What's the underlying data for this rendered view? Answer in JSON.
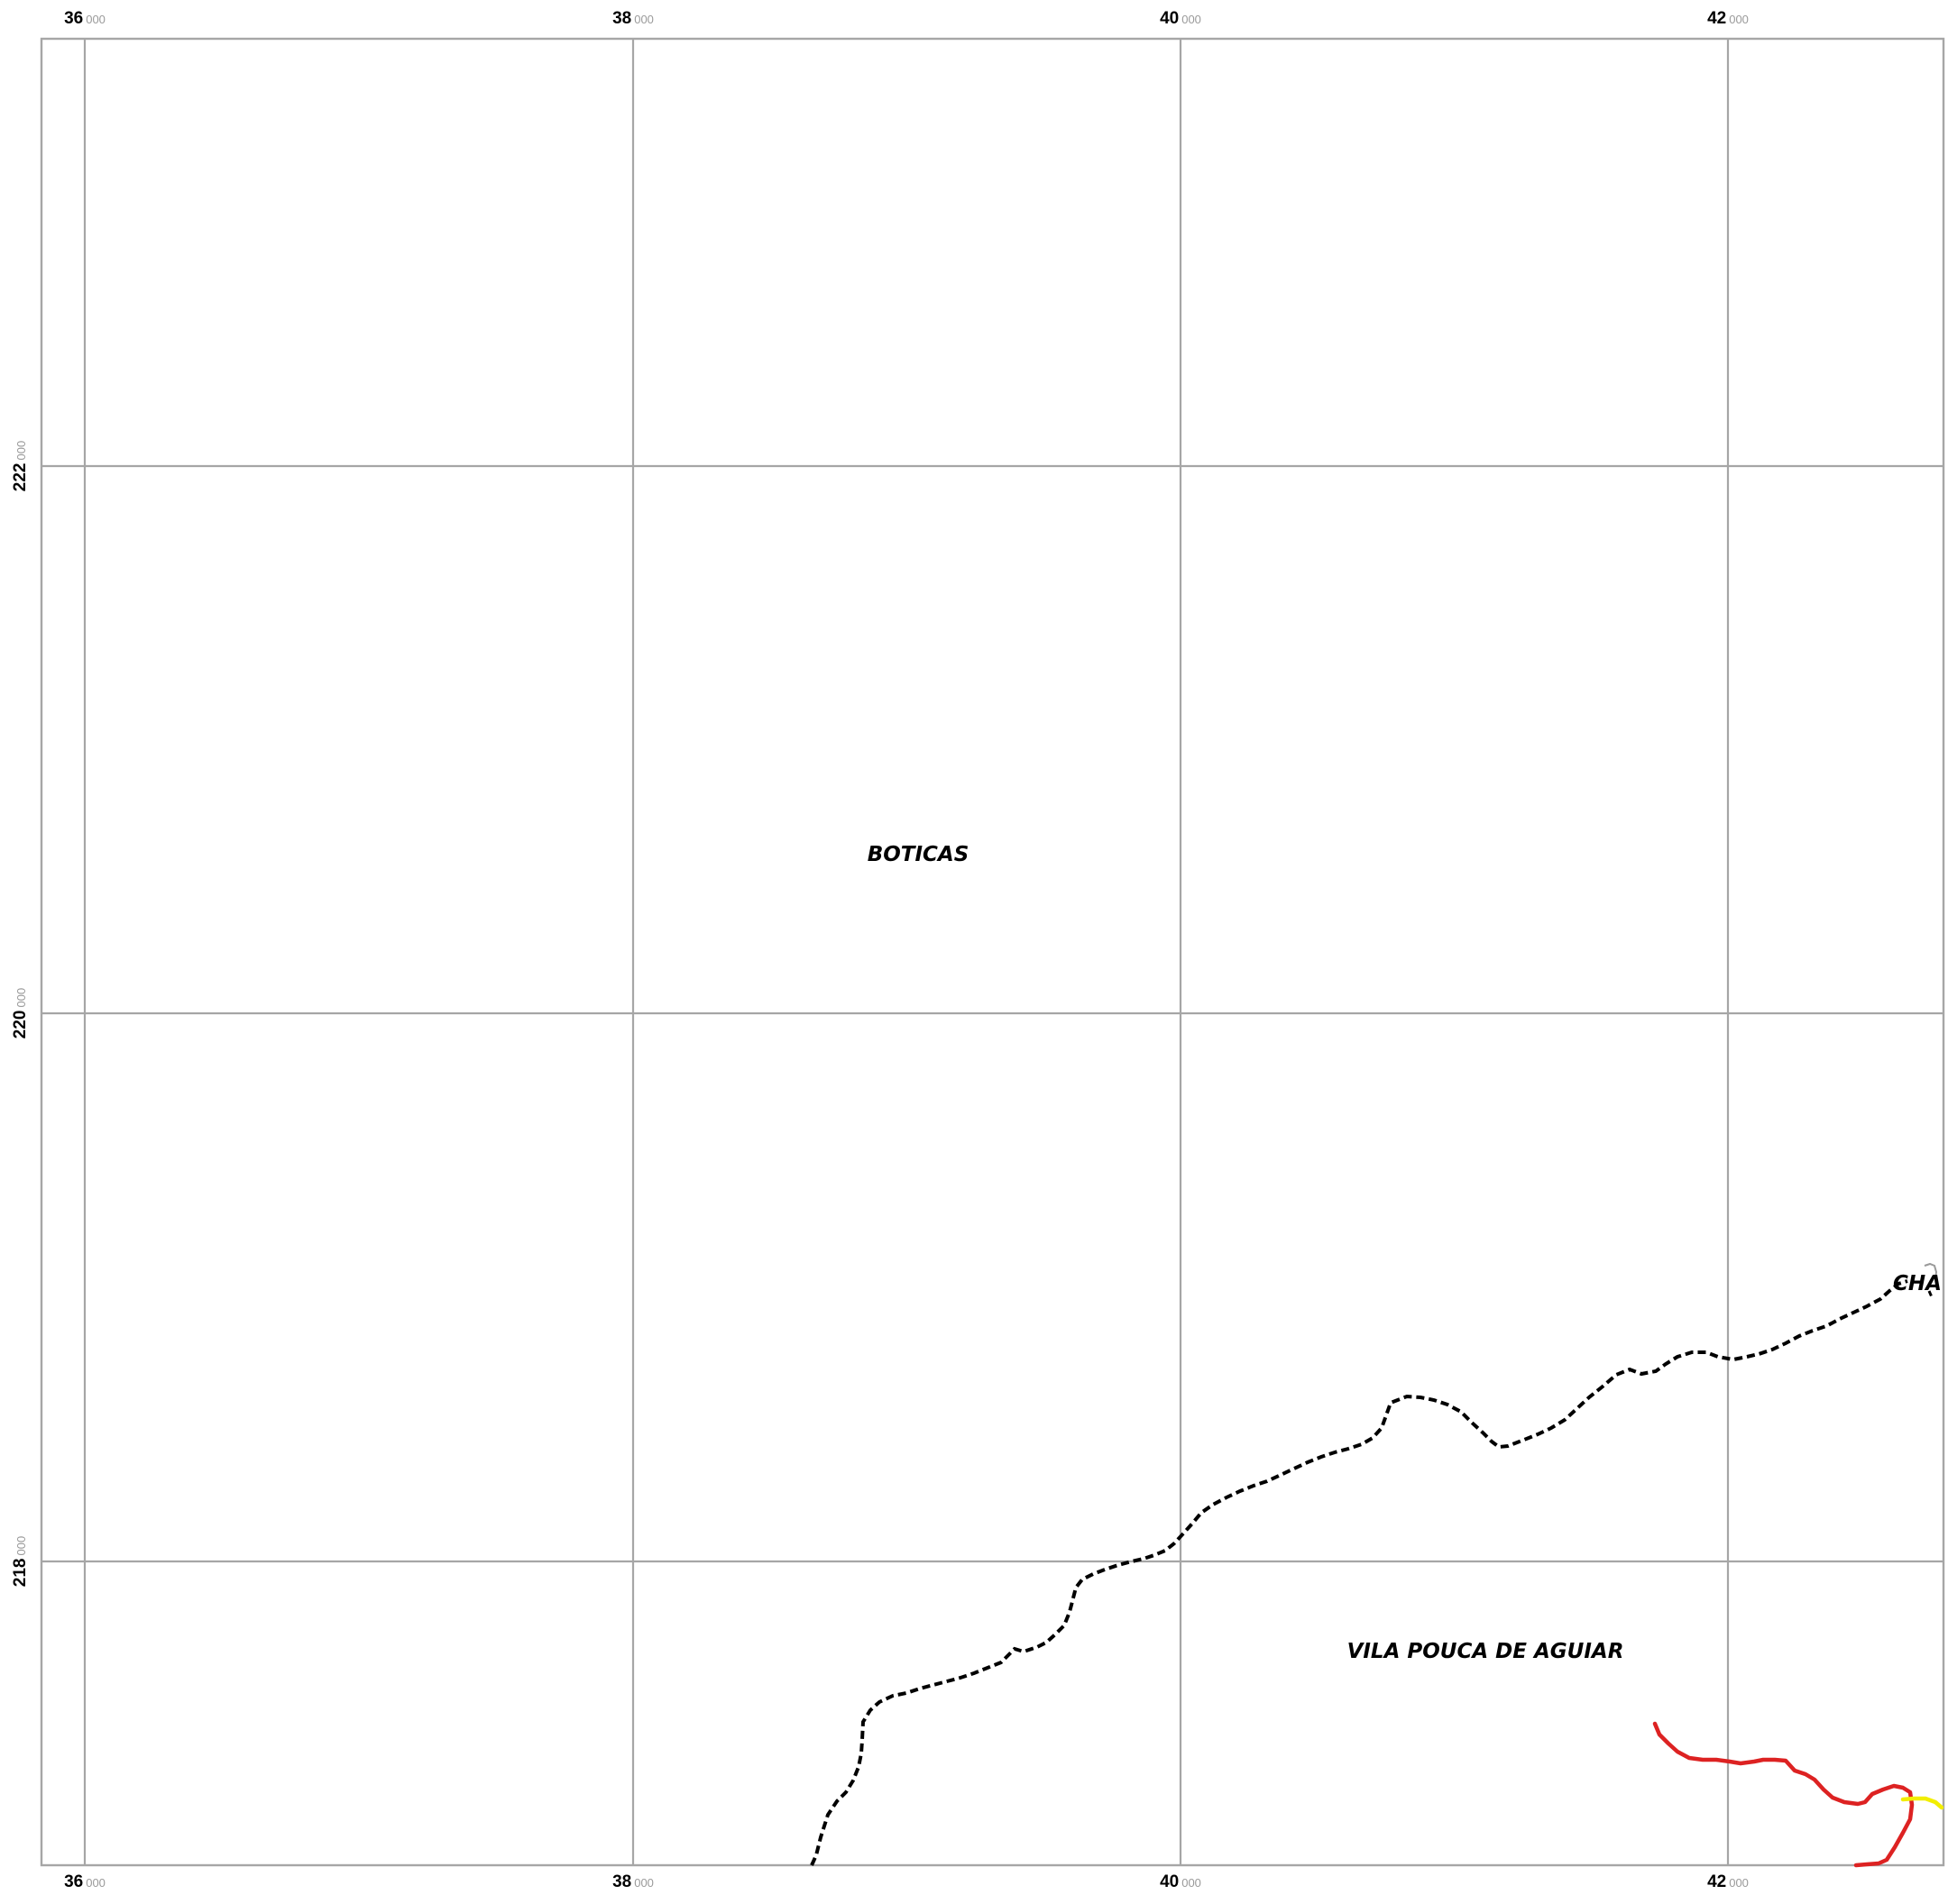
{
  "map": {
    "x_ticks": [
      {
        "major": "36",
        "minor": "000"
      },
      {
        "major": "38",
        "minor": "000"
      },
      {
        "major": "40",
        "minor": "000"
      },
      {
        "major": "42",
        "minor": "000"
      }
    ],
    "y_ticks": [
      {
        "major": "222",
        "minor": "000"
      },
      {
        "major": "220",
        "minor": "000"
      },
      {
        "major": "218",
        "minor": "000"
      }
    ],
    "places": {
      "boticas": "BOTICAS",
      "vila_pouca": "VILA POUCA DE AGUIAR",
      "chaves": "CHA"
    },
    "colors": {
      "grid": "#a6a6a6",
      "boundary": "#000000",
      "red_road": "#dd2222",
      "yellow_road": "#f2ee00"
    }
  }
}
